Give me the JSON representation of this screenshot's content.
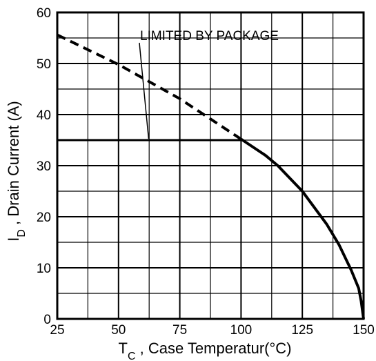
{
  "chart_data": {
    "type": "line",
    "xlabel": {
      "main": "T",
      "sub": "C",
      "rest": " , Case Temperatur(°C)"
    },
    "ylabel": {
      "main": "I",
      "sub": "D",
      "rest": " , Drain Current (A)"
    },
    "xlim": [
      25,
      150
    ],
    "ylim": [
      0,
      60
    ],
    "x_ticks": [
      25,
      50,
      75,
      100,
      125,
      150
    ],
    "y_ticks": [
      0,
      10,
      20,
      30,
      40,
      50,
      60
    ],
    "x_minor_step": 12.5,
    "y_minor_step": 5,
    "grid": true,
    "annotation": {
      "text": "LIMITED BY PACKAGE",
      "points_to": [
        62,
        35
      ]
    },
    "series": [
      {
        "style": "dashed",
        "x": [
          25,
          50,
          75,
          100
        ],
        "y": [
          55.6,
          49.8,
          43.1,
          35.2
        ]
      },
      {
        "style": "solid-flat",
        "x": [
          25,
          100
        ],
        "y": [
          35,
          35
        ]
      },
      {
        "style": "solid",
        "x": [
          100,
          110,
          115,
          125,
          135,
          140,
          145,
          148,
          149,
          150
        ],
        "y": [
          35.2,
          32.0,
          30.0,
          25.0,
          18.5,
          14.5,
          9.5,
          6.0,
          3.5,
          0
        ]
      }
    ]
  }
}
